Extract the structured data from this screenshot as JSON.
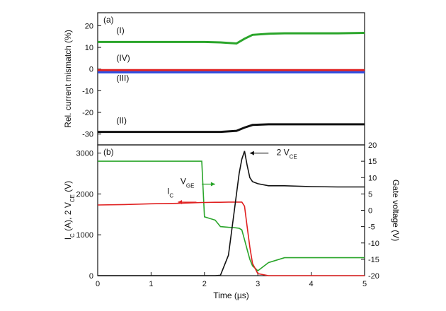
{
  "chart_data": [
    {
      "type": "line",
      "panel_label": "(a)",
      "ylabel": "Rel. current mismatch (%)",
      "xlim": [
        0,
        5
      ],
      "ylim": [
        -35,
        26
      ],
      "yticks": [
        -30,
        -20,
        -10,
        0,
        10,
        20
      ],
      "x": [
        0,
        0.5,
        1,
        1.5,
        2,
        2.3,
        2.6,
        2.75,
        2.9,
        3.2,
        3.5,
        4,
        4.5,
        5
      ],
      "series": [
        {
          "name": "(I)",
          "color": "#2aa52a",
          "values": [
            12.5,
            12.5,
            12.5,
            12.5,
            12.5,
            12.3,
            11.8,
            14,
            15.8,
            16.3,
            16.5,
            16.5,
            16.5,
            16.7
          ]
        },
        {
          "name": "(IV)",
          "color": "#e02020",
          "values": [
            -0.5,
            -0.5,
            -0.5,
            -0.5,
            -0.5,
            -0.5,
            -0.5,
            -0.5,
            -0.5,
            -0.5,
            -0.5,
            -0.5,
            -0.5,
            -0.5
          ]
        },
        {
          "name": "(III)",
          "color": "#2a4ae0",
          "values": [
            -1.5,
            -1.5,
            -1.5,
            -1.5,
            -1.5,
            -1.5,
            -1.5,
            -1.5,
            -1.5,
            -1.5,
            -1.5,
            -1.5,
            -1.5,
            -1.5
          ]
        },
        {
          "name": "(II)",
          "color": "#111111",
          "values": [
            -29,
            -29,
            -29,
            -29,
            -29,
            -29,
            -28.5,
            -27,
            -25.8,
            -25.5,
            -25.5,
            -25.5,
            -25.5,
            -25.5
          ]
        }
      ]
    },
    {
      "type": "line",
      "panel_label": "(b)",
      "xlabel": "Time (µs)",
      "ylabel_parts": [
        {
          "text": "I"
        },
        {
          "text": "C",
          "sub": true
        },
        {
          "text": " (A), 2 V"
        },
        {
          "text": "CE",
          "sub": true
        },
        {
          "text": " (V)"
        }
      ],
      "y2label": "Gate voltage (V)",
      "xlim": [
        0,
        5
      ],
      "xticks": [
        0,
        1,
        2,
        3,
        4,
        5
      ],
      "ylim": [
        0,
        3200
      ],
      "yticks": [
        0,
        1000,
        2000,
        3000
      ],
      "y2lim": [
        -20,
        20
      ],
      "y2ticks": [
        -20,
        -15,
        -10,
        -5,
        0,
        5,
        10,
        15,
        20
      ],
      "x": [
        0,
        0.5,
        1,
        1.5,
        1.95,
        2.0,
        2.2,
        2.3,
        2.45,
        2.55,
        2.65,
        2.7,
        2.75,
        2.8,
        2.85,
        2.9,
        3.0,
        3.2,
        3.5,
        4,
        4.5,
        5
      ],
      "series": [
        {
          "name": "V",
          "name_sub": "GE",
          "color": "#2aa52a",
          "axis": "y2",
          "values": [
            15,
            15,
            15,
            15,
            15,
            -2,
            -3,
            -5,
            -5.2,
            -5.3,
            -5.5,
            -6,
            -9,
            -12,
            -15,
            -17,
            -18.5,
            -16,
            -14.5,
            -14.5,
            -14.5,
            -14.5
          ]
        },
        {
          "name": "I",
          "name_sub": "C",
          "color": "#e02020",
          "values": [
            1730,
            1740,
            1760,
            1770,
            1790,
            1790,
            1795,
            1795,
            1800,
            1800,
            1800,
            1800,
            1700,
            1200,
            700,
            300,
            50,
            0,
            0,
            0,
            0,
            0
          ]
        },
        {
          "name": "2 V",
          "name_sub": "CE",
          "color": "#111111",
          "values": [
            0,
            0,
            0,
            0,
            0,
            0,
            0,
            10,
            500,
            1500,
            2500,
            2850,
            3050,
            2700,
            2400,
            2300,
            2250,
            2200,
            2200,
            2180,
            2170,
            2170
          ]
        }
      ]
    }
  ]
}
